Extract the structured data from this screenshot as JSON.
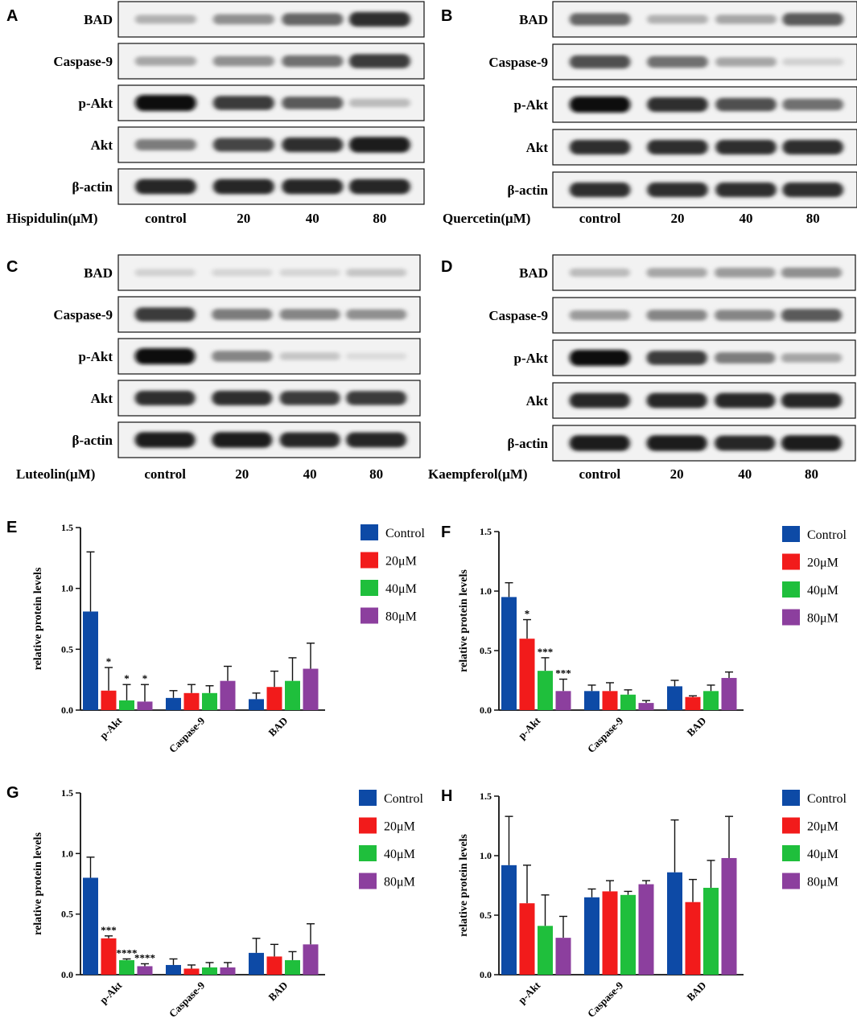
{
  "colors": {
    "control": "#0d4aa6",
    "m20": "#f21b1b",
    "m40": "#1fbf3c",
    "m80": "#8c3f9e"
  },
  "blot_panels": [
    {
      "letter": "A",
      "treatment": "Hispidulin(μM)",
      "rows": [
        "BAD",
        "Caspase-9",
        "p-Akt",
        "Akt",
        "β-actin"
      ],
      "lanes": [
        "control",
        "20",
        "40",
        "80"
      ],
      "intensity": [
        [
          0.25,
          0.4,
          0.6,
          0.85
        ],
        [
          0.3,
          0.4,
          0.55,
          0.8
        ],
        [
          1.0,
          0.8,
          0.65,
          0.2
        ],
        [
          0.5,
          0.75,
          0.85,
          0.95
        ],
        [
          0.9,
          0.9,
          0.9,
          0.9
        ]
      ]
    },
    {
      "letter": "B",
      "treatment": "Quercetin(μM)",
      "rows": [
        "BAD",
        "Caspase-9",
        "p-Akt",
        "Akt",
        "β-actin"
      ],
      "lanes": [
        "control",
        "20",
        "40",
        "80"
      ],
      "intensity": [
        [
          0.6,
          0.25,
          0.3,
          0.65
        ],
        [
          0.7,
          0.55,
          0.3,
          0.1
        ],
        [
          1.0,
          0.85,
          0.7,
          0.55
        ],
        [
          0.85,
          0.85,
          0.85,
          0.85
        ],
        [
          0.85,
          0.85,
          0.85,
          0.85
        ]
      ]
    },
    {
      "letter": "C",
      "treatment": "Luteolin(μM)",
      "rows": [
        "BAD",
        "Caspase-9",
        "p-Akt",
        "Akt",
        "β-actin"
      ],
      "lanes": [
        "control",
        "20",
        "40",
        "80"
      ],
      "intensity": [
        [
          0.1,
          0.08,
          0.08,
          0.15
        ],
        [
          0.8,
          0.5,
          0.45,
          0.4
        ],
        [
          1.0,
          0.45,
          0.15,
          0.05
        ],
        [
          0.85,
          0.85,
          0.8,
          0.8
        ],
        [
          0.95,
          0.95,
          0.9,
          0.9
        ]
      ]
    },
    {
      "letter": "D",
      "treatment": "Kaempferol(μM)",
      "rows": [
        "BAD",
        "Caspase-9",
        "p-Akt",
        "Akt",
        "β-actin"
      ],
      "lanes": [
        "control",
        "20",
        "40",
        "80"
      ],
      "intensity": [
        [
          0.2,
          0.3,
          0.35,
          0.4
        ],
        [
          0.35,
          0.45,
          0.45,
          0.65
        ],
        [
          1.0,
          0.8,
          0.5,
          0.3
        ],
        [
          0.9,
          0.9,
          0.9,
          0.9
        ],
        [
          0.95,
          0.95,
          0.9,
          0.95
        ]
      ]
    }
  ],
  "legend": [
    "Control",
    "20μM",
    "40μM",
    "80μM"
  ],
  "chart_data": [
    {
      "panel": "E",
      "type": "bar",
      "ylabel": "relative protein levels",
      "ylim": [
        0,
        1.5
      ],
      "yticks": [
        "0.0",
        "0.5",
        "1.0",
        "1.5"
      ],
      "categories": [
        "p-Akt",
        "Caspase-9",
        "BAD"
      ],
      "series": [
        {
          "name": "Control",
          "values": [
            0.81,
            0.1,
            0.09
          ],
          "errors": [
            0.49,
            0.06,
            0.05
          ]
        },
        {
          "name": "20μM",
          "values": [
            0.16,
            0.14,
            0.19
          ],
          "errors": [
            0.19,
            0.07,
            0.13
          ]
        },
        {
          "name": "40μM",
          "values": [
            0.08,
            0.14,
            0.24
          ],
          "errors": [
            0.13,
            0.06,
            0.19
          ]
        },
        {
          "name": "80μM",
          "values": [
            0.07,
            0.24,
            0.34
          ],
          "errors": [
            0.14,
            0.12,
            0.21
          ]
        }
      ],
      "annotations": [
        [
          "",
          "",
          ""
        ],
        [
          "*",
          "",
          ""
        ],
        [
          "*",
          "",
          ""
        ],
        [
          "*",
          "",
          ""
        ]
      ]
    },
    {
      "panel": "F",
      "type": "bar",
      "ylabel": "relative protein levels",
      "ylim": [
        0,
        1.5
      ],
      "yticks": [
        "0.0",
        "0.5",
        "1.0",
        "1.5"
      ],
      "categories": [
        "p-Akt",
        "Caspase-9",
        "BAD"
      ],
      "series": [
        {
          "name": "Control",
          "values": [
            0.95,
            0.16,
            0.2
          ],
          "errors": [
            0.12,
            0.05,
            0.05
          ]
        },
        {
          "name": "20μM",
          "values": [
            0.6,
            0.16,
            0.11
          ],
          "errors": [
            0.16,
            0.07,
            0.01
          ]
        },
        {
          "name": "40μM",
          "values": [
            0.33,
            0.13,
            0.16
          ],
          "errors": [
            0.11,
            0.04,
            0.05
          ]
        },
        {
          "name": "80μM",
          "values": [
            0.16,
            0.06,
            0.27
          ],
          "errors": [
            0.1,
            0.02,
            0.05
          ]
        }
      ],
      "annotations": [
        [
          "",
          "",
          ""
        ],
        [
          "*",
          "",
          ""
        ],
        [
          "***",
          "",
          ""
        ],
        [
          "***",
          "",
          ""
        ]
      ]
    },
    {
      "panel": "G",
      "type": "bar",
      "ylabel": "relative protein levels",
      "ylim": [
        0,
        1.5
      ],
      "yticks": [
        "0.0",
        "0.5",
        "1.0",
        "1.5"
      ],
      "categories": [
        "p-Akt",
        "Caspase-9",
        "BAD"
      ],
      "series": [
        {
          "name": "Control",
          "values": [
            0.8,
            0.08,
            0.18
          ],
          "errors": [
            0.17,
            0.05,
            0.12
          ]
        },
        {
          "name": "20μM",
          "values": [
            0.3,
            0.05,
            0.15
          ],
          "errors": [
            0.02,
            0.03,
            0.1
          ]
        },
        {
          "name": "40μM",
          "values": [
            0.12,
            0.06,
            0.12
          ],
          "errors": [
            0.01,
            0.04,
            0.07
          ]
        },
        {
          "name": "80μM",
          "values": [
            0.07,
            0.06,
            0.25
          ],
          "errors": [
            0.02,
            0.04,
            0.17
          ]
        }
      ],
      "annotations": [
        [
          "",
          "",
          ""
        ],
        [
          "***",
          "",
          ""
        ],
        [
          "****",
          "",
          ""
        ],
        [
          "****",
          "",
          ""
        ]
      ]
    },
    {
      "panel": "H",
      "type": "bar",
      "ylabel": "relative protein levels",
      "ylim": [
        0,
        1.5
      ],
      "yticks": [
        "0.0",
        "0.5",
        "1.0",
        "1.5"
      ],
      "categories": [
        "p-Akt",
        "Caspase-9",
        "BAD"
      ],
      "series": [
        {
          "name": "Control",
          "values": [
            0.92,
            0.65,
            0.86
          ],
          "errors": [
            0.41,
            0.07,
            0.44
          ]
        },
        {
          "name": "20μM",
          "values": [
            0.6,
            0.7,
            0.61
          ],
          "errors": [
            0.32,
            0.09,
            0.19
          ]
        },
        {
          "name": "40μM",
          "values": [
            0.41,
            0.67,
            0.73
          ],
          "errors": [
            0.26,
            0.03,
            0.23
          ]
        },
        {
          "name": "80μM",
          "values": [
            0.31,
            0.76,
            0.98
          ],
          "errors": [
            0.18,
            0.03,
            0.35
          ]
        }
      ],
      "annotations": [
        [
          "",
          "",
          ""
        ],
        [
          "",
          "",
          ""
        ],
        [
          "",
          "",
          ""
        ],
        [
          "",
          "",
          ""
        ]
      ]
    }
  ]
}
